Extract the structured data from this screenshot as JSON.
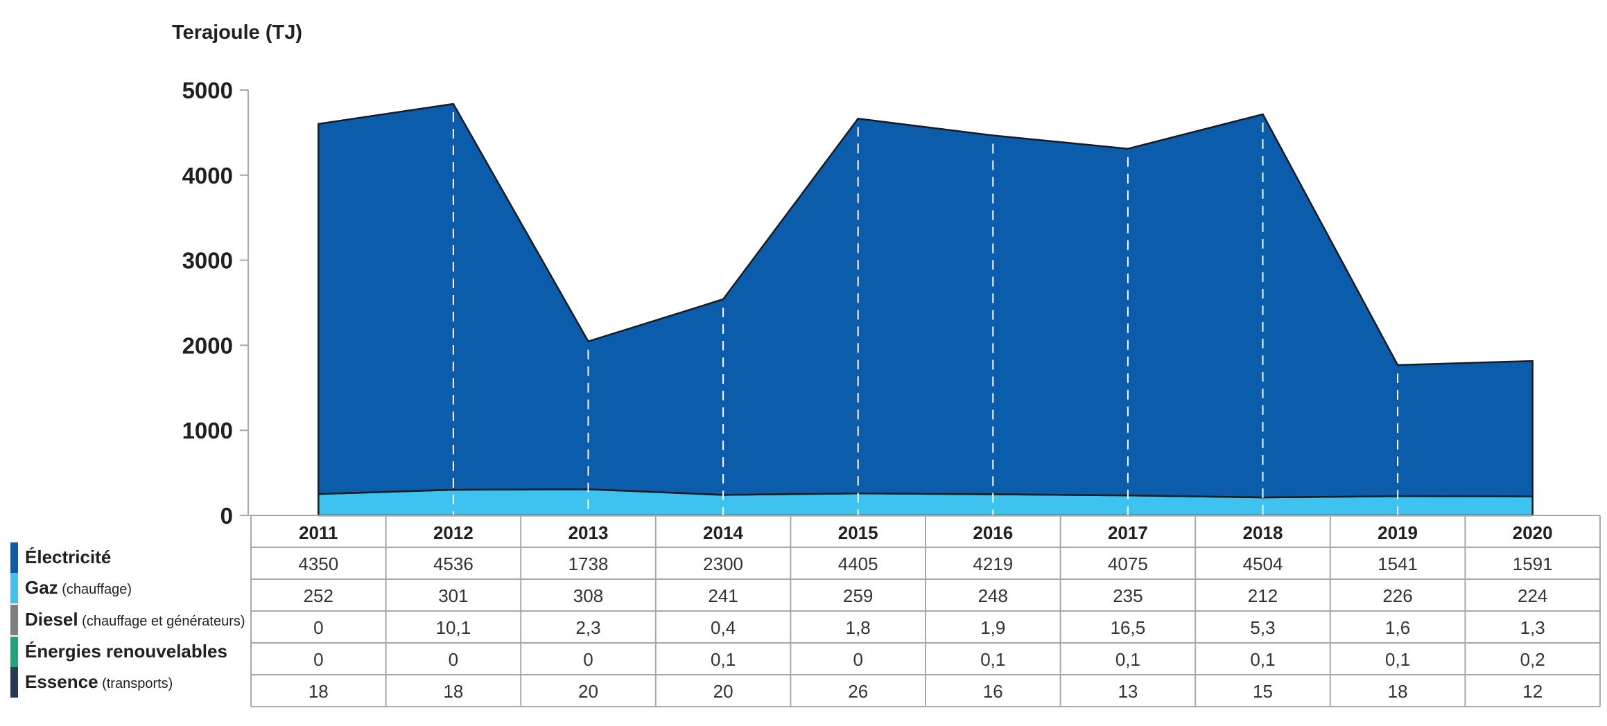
{
  "chart_data": {
    "type": "area",
    "stacked": true,
    "unit_label": "Terajoule (TJ)",
    "ylim": [
      0,
      5000
    ],
    "yticks": [
      "0",
      "1000",
      "2000",
      "3000",
      "4000",
      "5000"
    ],
    "x": [
      "2011",
      "2012",
      "2013",
      "2014",
      "2015",
      "2016",
      "2017",
      "2018",
      "2019",
      "2020"
    ],
    "series": [
      {
        "name": "Électricité",
        "suffix": "",
        "color": "#0b5cab",
        "plotted": true,
        "values": [
          4350,
          4536,
          1738,
          2300,
          4405,
          4219,
          4075,
          4504,
          1541,
          1591
        ],
        "labels": [
          "4350",
          "4536",
          "1738",
          "2300",
          "4405",
          "4219",
          "4075",
          "4504",
          "1541",
          "1591"
        ]
      },
      {
        "name": "Gaz",
        "suffix": "(chauffage)",
        "color": "#3ec3f0",
        "plotted": true,
        "values": [
          252,
          301,
          308,
          241,
          259,
          248,
          235,
          212,
          226,
          224
        ],
        "labels": [
          "252",
          "301",
          "308",
          "241",
          "259",
          "248",
          "235",
          "212",
          "226",
          "224"
        ]
      },
      {
        "name": "Diesel",
        "suffix": "(chauffage et générateurs)",
        "color": "#7f7f83",
        "plotted": false,
        "values": [
          0,
          10.1,
          2.3,
          0.4,
          1.8,
          1.9,
          16.5,
          5.3,
          1.6,
          1.3
        ],
        "labels": [
          "0",
          "10,1",
          "2,3",
          "0,4",
          "1,8",
          "1,9",
          "16,5",
          "5,3",
          "1,6",
          "1,3"
        ]
      },
      {
        "name": "Énergies renouvelables",
        "suffix": "",
        "color": "#1fa57e",
        "plotted": false,
        "values": [
          0,
          0,
          0,
          0.1,
          0,
          0.1,
          0.1,
          0.1,
          0.1,
          0.2
        ],
        "labels": [
          "0",
          "0",
          "0",
          "0,1",
          "0",
          "0,1",
          "0,1",
          "0,1",
          "0,1",
          "0,2"
        ]
      },
      {
        "name": "Essence",
        "suffix": "(transports)",
        "color": "#243b55",
        "plotted": false,
        "values": [
          18,
          18,
          20,
          20,
          26,
          16,
          13,
          15,
          18,
          12
        ],
        "labels": [
          "18",
          "18",
          "20",
          "20",
          "26",
          "16",
          "13",
          "15",
          "18",
          "12"
        ]
      }
    ],
    "grid": false,
    "legend": "table-left"
  }
}
